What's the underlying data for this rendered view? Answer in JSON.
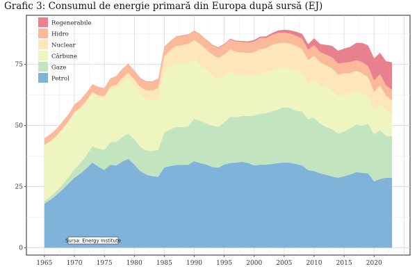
{
  "chart_data": {
    "type": "area",
    "stacked": true,
    "title": "Grafic 3: Consumul de energie primară din Europa după sursă (EJ)",
    "xlabel": "",
    "ylabel": "",
    "xlim": [
      1965,
      2023
    ],
    "ylim": [
      0,
      95
    ],
    "x_ticks": [
      1965,
      1970,
      1975,
      1980,
      1985,
      1990,
      1995,
      2000,
      2005,
      2010,
      2015,
      2020
    ],
    "y_ticks": [
      0,
      25,
      50,
      75
    ],
    "grid": true,
    "legend_position": "top-left",
    "source_note": "Sursa: Energy Institute",
    "x": [
      1965,
      1966,
      1967,
      1968,
      1969,
      1970,
      1971,
      1972,
      1973,
      1974,
      1975,
      1976,
      1977,
      1978,
      1979,
      1980,
      1981,
      1982,
      1983,
      1984,
      1985,
      1986,
      1987,
      1988,
      1989,
      1990,
      1991,
      1992,
      1993,
      1994,
      1995,
      1996,
      1997,
      1998,
      1999,
      2000,
      2001,
      2002,
      2003,
      2004,
      2005,
      2006,
      2007,
      2008,
      2009,
      2010,
      2011,
      2012,
      2013,
      2014,
      2015,
      2016,
      2017,
      2018,
      2019,
      2020,
      2021,
      2022,
      2023
    ],
    "series": [
      {
        "name": "Petrol",
        "color": "#80b3d9",
        "values": [
          18.0,
          19.6,
          21.5,
          23.7,
          26.1,
          28.6,
          30.3,
          32.4,
          34.8,
          33.1,
          31.8,
          33.9,
          33.6,
          35.2,
          36.3,
          34.0,
          31.3,
          29.9,
          29.2,
          29.0,
          32.8,
          33.4,
          33.8,
          33.9,
          33.9,
          35.4,
          34.6,
          34.0,
          33.0,
          32.7,
          34.0,
          34.6,
          34.8,
          35.1,
          34.6,
          33.6,
          33.9,
          34.0,
          34.2,
          34.6,
          34.8,
          34.7,
          34.2,
          33.6,
          31.7,
          31.3,
          30.4,
          29.8,
          29.1,
          28.6,
          29.2,
          29.9,
          30.9,
          30.6,
          30.4,
          27.1,
          28.1,
          28.6,
          28.5
        ]
      },
      {
        "name": "Gaze",
        "color": "#c2e5bf",
        "values": [
          1.1,
          1.3,
          1.6,
          2.0,
          2.6,
          3.4,
          4.3,
          5.3,
          6.6,
          7.4,
          8.2,
          9.3,
          9.7,
          10.0,
          10.4,
          10.3,
          9.9,
          9.9,
          10.3,
          11.1,
          14.3,
          15.0,
          15.5,
          15.4,
          15.7,
          17.3,
          17.3,
          16.8,
          16.9,
          16.7,
          17.2,
          18.9,
          18.6,
          18.7,
          19.2,
          20.4,
          20.9,
          21.0,
          21.6,
          21.9,
          22.6,
          22.4,
          21.8,
          22.0,
          20.8,
          21.9,
          20.2,
          19.6,
          19.3,
          18.0,
          18.3,
          18.9,
          19.5,
          19.2,
          20.2,
          19.3,
          19.9,
          17.2,
          17.1
        ]
      },
      {
        "name": "Cărbune",
        "color": "#eef5c1",
        "values": [
          22.7,
          22.5,
          22.3,
          22.6,
          22.6,
          23.0,
          22.2,
          21.8,
          21.5,
          21.0,
          20.8,
          21.5,
          21.8,
          22.4,
          22.8,
          22.1,
          21.4,
          21.0,
          20.7,
          20.6,
          25.2,
          25.6,
          26.1,
          26.0,
          26.0,
          24.2,
          23.0,
          21.8,
          20.4,
          19.5,
          18.8,
          18.4,
          17.3,
          16.6,
          16.1,
          16.3,
          16.6,
          16.6,
          16.9,
          16.8,
          16.2,
          16.2,
          16.6,
          15.7,
          14.6,
          15.4,
          15.7,
          16.1,
          15.8,
          15.2,
          15.1,
          14.2,
          13.8,
          13.4,
          11.1,
          9.9,
          10.6,
          10.1,
          8.4
        ]
      },
      {
        "name": "Nuclear",
        "color": "#fde6b8",
        "values": [
          0.2,
          0.2,
          0.3,
          0.3,
          0.3,
          0.4,
          0.5,
          0.6,
          0.7,
          0.8,
          1.1,
          1.2,
          1.5,
          1.8,
          2.0,
          2.4,
          3.1,
          3.5,
          4.0,
          4.7,
          6.0,
          6.7,
          7.1,
          7.5,
          7.7,
          7.9,
          8.3,
          8.4,
          8.6,
          8.7,
          8.9,
          9.2,
          9.3,
          9.4,
          9.6,
          9.6,
          9.8,
          10.0,
          10.2,
          10.3,
          10.2,
          10.1,
          9.9,
          9.9,
          9.6,
          9.8,
          9.5,
          9.1,
          9.1,
          8.9,
          8.6,
          8.4,
          8.1,
          8.1,
          8.0,
          7.4,
          7.7,
          6.2,
          6.2
        ]
      },
      {
        "name": "Hidro",
        "color": "#fab998",
        "values": [
          2.5,
          2.7,
          2.7,
          2.8,
          2.8,
          3.0,
          3.0,
          3.1,
          3.1,
          3.3,
          3.2,
          3.2,
          3.5,
          3.6,
          3.6,
          3.6,
          3.6,
          3.6,
          3.7,
          3.7,
          3.7,
          3.7,
          3.8,
          3.8,
          3.7,
          3.7,
          3.8,
          3.9,
          3.9,
          4.0,
          4.1,
          4.0,
          4.2,
          4.3,
          4.3,
          4.4,
          4.5,
          4.1,
          4.1,
          4.2,
          4.1,
          4.1,
          4.1,
          4.2,
          4.2,
          4.4,
          4.1,
          4.3,
          4.5,
          4.6,
          4.4,
          4.5,
          4.3,
          4.6,
          4.5,
          4.7,
          4.6,
          4.2,
          4.3
        ]
      },
      {
        "name": "Regenerabile",
        "color": "#e8808e",
        "values": [
          0.1,
          0.1,
          0.1,
          0.1,
          0.1,
          0.1,
          0.1,
          0.1,
          0.1,
          0.1,
          0.1,
          0.1,
          0.1,
          0.1,
          0.1,
          0.1,
          0.1,
          0.1,
          0.1,
          0.1,
          0.1,
          0.1,
          0.1,
          0.2,
          0.2,
          0.2,
          0.2,
          0.2,
          0.2,
          0.3,
          0.3,
          0.3,
          0.4,
          0.4,
          0.5,
          0.6,
          0.6,
          0.7,
          0.8,
          1.0,
          1.2,
          1.4,
          1.7,
          2.0,
          2.3,
          2.8,
          3.4,
          4.0,
          4.7,
          5.2,
          5.8,
          6.2,
          7.1,
          7.8,
          8.5,
          9.0,
          8.8,
          9.9,
          11.3
        ]
      }
    ]
  }
}
